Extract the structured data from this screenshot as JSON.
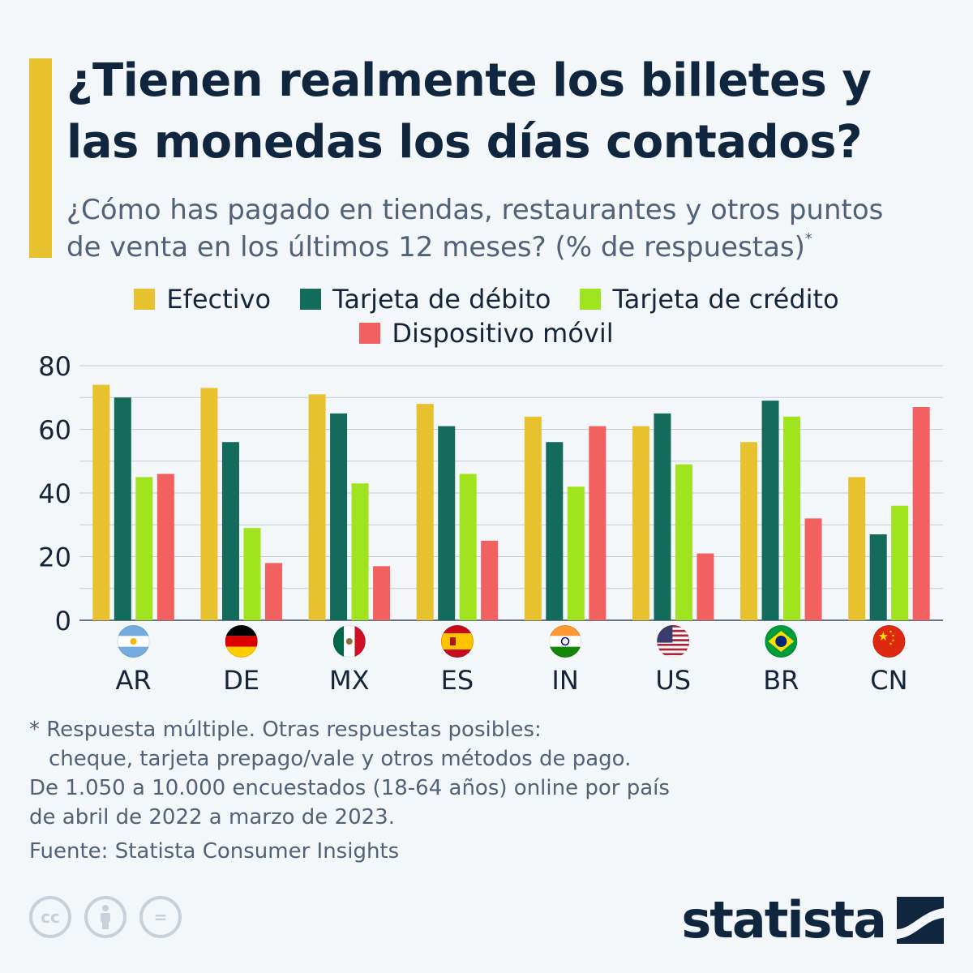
{
  "header": {
    "title_lines": [
      "¿Tienen realmente los billetes y",
      "las monedas los días contados?"
    ],
    "subtitle_lines": [
      "¿Cómo has pagado en tiendas, restaurantes y otros puntos",
      "de venta en los últimos 12 meses? (% de respuestas)"
    ],
    "subtitle_mark": "*",
    "accent_color": "#e8c22e"
  },
  "legend": [
    {
      "label": "Efectivo",
      "color": "#e8c22e"
    },
    {
      "label": "Tarjeta de débito",
      "color": "#126b5b"
    },
    {
      "label": "Tarjeta de crédito",
      "color": "#9fe41f"
    },
    {
      "label": "Dispositivo móvil",
      "color": "#f36060"
    }
  ],
  "chart_data": {
    "type": "bar",
    "categories": [
      "AR",
      "DE",
      "MX",
      "ES",
      "IN",
      "US",
      "BR",
      "CN"
    ],
    "category_icons": [
      "argentina-flag-icon",
      "germany-flag-icon",
      "mexico-flag-icon",
      "spain-flag-icon",
      "india-flag-icon",
      "usa-flag-icon",
      "brazil-flag-icon",
      "china-flag-icon"
    ],
    "series": [
      {
        "name": "Efectivo",
        "color": "#e8c22e",
        "values": [
          74,
          73,
          71,
          68,
          64,
          61,
          56,
          45
        ]
      },
      {
        "name": "Tarjeta de débito",
        "color": "#126b5b",
        "values": [
          70,
          56,
          65,
          61,
          56,
          65,
          69,
          27
        ]
      },
      {
        "name": "Tarjeta de crédito",
        "color": "#9fe41f",
        "values": [
          45,
          29,
          43,
          46,
          42,
          49,
          64,
          36
        ]
      },
      {
        "name": "Dispositivo móvil",
        "color": "#f36060",
        "values": [
          46,
          18,
          17,
          25,
          61,
          21,
          32,
          67
        ]
      }
    ],
    "ylim": [
      0,
      80
    ],
    "yticks": [
      "0",
      "20",
      "40",
      "60",
      "80"
    ],
    "grid": true,
    "legend_position": "top-center"
  },
  "footnote": {
    "lines": [
      "* Respuesta múltiple. Otras respuestas posibles:",
      "cheque, tarjeta prepago/vale y otros métodos de pago.",
      "De 1.050 a 10.000 encuestados (18-64 años) online por país",
      "de abril de 2022 a marzo de 2023."
    ],
    "source": "Fuente: Statista Consumer Insights"
  },
  "footer": {
    "license_icons": [
      "creative-commons-icon",
      "attribution-icon",
      "no-derivatives-icon"
    ],
    "cc_label": "cc",
    "nd_label": "=",
    "brand": "statista"
  }
}
